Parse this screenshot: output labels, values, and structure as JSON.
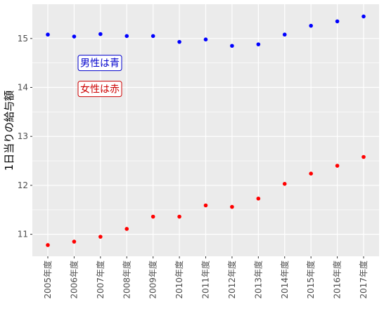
{
  "chart_data": {
    "type": "scatter",
    "title": "",
    "xlabel": "",
    "ylabel": "1日当りの給与額",
    "categories": [
      "2005年度",
      "2006年度",
      "2007年度",
      "2008年度",
      "2009年度",
      "2010年度",
      "2011年度",
      "2012年度",
      "2013年度",
      "2014年度",
      "2015年度",
      "2016年度",
      "2017年度"
    ],
    "series": [
      {
        "color": "#0000ff",
        "values": [
          15.08,
          15.04,
          15.09,
          15.05,
          15.05,
          14.93,
          14.98,
          14.85,
          14.88,
          15.08,
          15.26,
          15.35,
          15.45
        ]
      },
      {
        "color": "#ff0000",
        "values": [
          10.78,
          10.85,
          10.95,
          11.11,
          11.36,
          11.36,
          11.59,
          11.56,
          11.73,
          12.03,
          12.24,
          12.4,
          12.58
        ]
      }
    ],
    "yticks": [
      11,
      12,
      13,
      14,
      15
    ],
    "ylim": [
      10.55,
      15.7
    ],
    "grid": true,
    "annotations": [
      {
        "text": "男性は青",
        "color": "#0000cc"
      },
      {
        "text": "女性は赤",
        "color": "#cc0000"
      }
    ]
  }
}
